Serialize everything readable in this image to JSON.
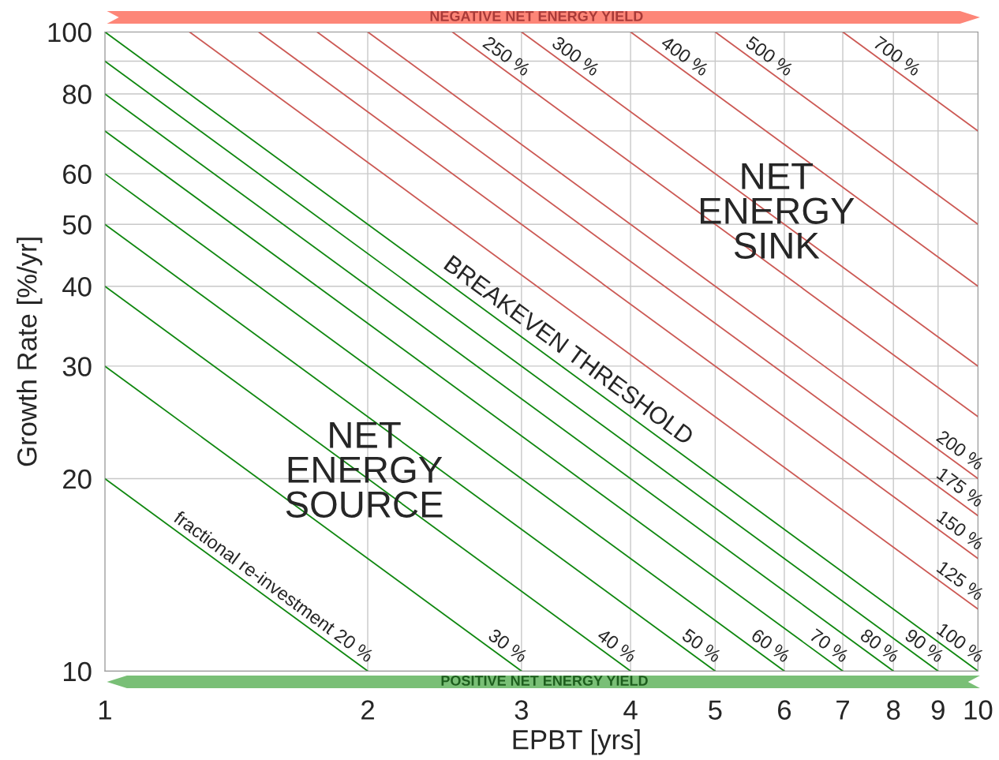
{
  "chart_data": {
    "type": "line",
    "xlabel": "EPBT [yrs]",
    "ylabel": "Growth Rate [%/yr]",
    "log": "xy",
    "xlim": [
      1,
      10
    ],
    "xticks": [
      1,
      2,
      3,
      4,
      5,
      6,
      7,
      8,
      9,
      10
    ],
    "ylim": [
      10,
      100
    ],
    "yticks": [
      10,
      20,
      30,
      40,
      50,
      60,
      {
        "value": 70,
        "label": null
      },
      80,
      {
        "value": 90,
        "label": null
      },
      100
    ],
    "grid": true,
    "marker": "none",
    "line_style": "solid",
    "series": [
      {
        "name": "fractional re-investment 20 %",
        "color": "#118811",
        "x": [
          1,
          2
        ],
        "values": [
          20,
          10
        ]
      },
      {
        "name": "30 %",
        "color": "#118811",
        "x": [
          1,
          3
        ],
        "values": [
          30,
          10
        ]
      },
      {
        "name": "40 %",
        "color": "#118811",
        "x": [
          1,
          4
        ],
        "values": [
          40,
          10
        ]
      },
      {
        "name": "50 %",
        "color": "#118811",
        "x": [
          1,
          5
        ],
        "values": [
          50,
          10
        ]
      },
      {
        "name": "60 %",
        "color": "#118811",
        "x": [
          1,
          6
        ],
        "values": [
          60,
          10
        ]
      },
      {
        "name": "70 %",
        "color": "#118811",
        "x": [
          1,
          7
        ],
        "values": [
          70,
          10
        ]
      },
      {
        "name": "80 %",
        "color": "#118811",
        "x": [
          1,
          8
        ],
        "values": [
          80,
          10
        ]
      },
      {
        "name": "90 %",
        "color": "#118811",
        "x": [
          1,
          9
        ],
        "values": [
          90,
          10
        ]
      },
      {
        "name": "100 %",
        "color": "#118811",
        "x": [
          1,
          10
        ],
        "values": [
          100,
          10
        ]
      },
      {
        "name": "125 %",
        "color": "#cc5a55",
        "x": [
          1.25,
          10
        ],
        "values": [
          100,
          12.5
        ]
      },
      {
        "name": "150 %",
        "color": "#cc5a55",
        "x": [
          1.5,
          10
        ],
        "values": [
          100,
          15
        ]
      },
      {
        "name": "175 %",
        "color": "#cc5a55",
        "x": [
          1.75,
          10
        ],
        "values": [
          100,
          17.5
        ]
      },
      {
        "name": "200 %",
        "color": "#cc5a55",
        "x": [
          2,
          10
        ],
        "values": [
          100,
          20
        ]
      },
      {
        "name": "250 %",
        "color": "#cc5a55",
        "x": [
          2.5,
          10
        ],
        "values": [
          100,
          25
        ]
      },
      {
        "name": "300 %",
        "color": "#cc5a55",
        "x": [
          3,
          10
        ],
        "values": [
          100,
          30
        ]
      },
      {
        "name": "400 %",
        "color": "#cc5a55",
        "x": [
          4,
          10
        ],
        "values": [
          100,
          40
        ]
      },
      {
        "name": "500 %",
        "color": "#cc5a55",
        "x": [
          5,
          10
        ],
        "values": [
          100,
          50
        ]
      },
      {
        "name": "700 %",
        "color": "#cc5a55",
        "x": [
          7,
          10
        ],
        "values": [
          100,
          70
        ]
      }
    ],
    "annotations": [
      "NET\nENERGY\nSOURCE",
      "NET\nENERGY\nSINK",
      "BREAKEVEN THRESHOLD",
      "NEGATIVE NET ENERGY YIELD",
      "POSITIVE NET ENERGY YIELD"
    ]
  }
}
